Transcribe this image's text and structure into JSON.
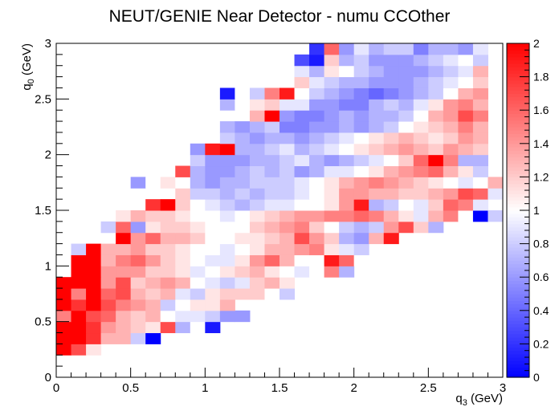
{
  "chart_data": {
    "type": "heatmap",
    "title": "NEUT/GENIE Near Detector - numu CCOther",
    "xlabel": "q_3 (GeV)",
    "ylabel": "q_0 (GeV)",
    "xlim": [
      0,
      3
    ],
    "ylim": [
      0,
      3
    ],
    "zlim": [
      0,
      2
    ],
    "x_bins": 30,
    "y_bins": 30,
    "x_ticks": [
      "0",
      "0.5",
      "1",
      "1.5",
      "2",
      "2.5",
      "3"
    ],
    "y_ticks": [
      "0",
      "0.5",
      "1",
      "1.5",
      "2",
      "2.5",
      "3"
    ],
    "z_ticks": [
      "0",
      "0.2",
      "0.4",
      "0.6",
      "0.8",
      "1",
      "1.2",
      "1.4",
      "1.6",
      "1.8",
      "2"
    ],
    "colormap": [
      "#0000ff",
      "#ffffff",
      "#ff0000"
    ],
    "rows_comment_free": true,
    "rows": [
      {
        "y0": 0.2,
        "x0": 0.0,
        "v": [
          2.0,
          1.7,
          1.1
        ]
      },
      {
        "y0": 0.3,
        "x0": 0.0,
        "v": [
          2.0,
          2.0,
          1.8,
          1.3,
          1.3,
          0.8,
          0.0
        ]
      },
      {
        "y0": 0.4,
        "x0": 0.0,
        "v": [
          2.0,
          2.0,
          1.8,
          1.4,
          1.3,
          1.2,
          1.1,
          1.7,
          0.7,
          1.0,
          0.1
        ]
      },
      {
        "y0": 0.5,
        "x0": 0.0,
        "v": [
          1.5,
          2.0,
          1.7,
          1.6,
          1.3,
          1.2,
          1.3,
          1.0,
          0.9,
          0.9,
          0.8,
          0.6,
          0.6
        ]
      },
      {
        "y0": 0.6,
        "x0": 0.0,
        "v": [
          2.0,
          1.8,
          2.0,
          1.7,
          1.5,
          1.4,
          1.3,
          0.8,
          1.0,
          1.1,
          1.1,
          1.3
        ]
      },
      {
        "y0": 0.7,
        "x0": 0.0,
        "v": [
          2.0,
          1.5,
          2.0,
          1.6,
          1.7,
          1.3,
          1.2,
          1.3,
          0.9,
          0.8,
          1.1,
          1.2,
          1.2,
          1.2,
          1.0,
          0.8
        ]
      },
      {
        "y0": 0.8,
        "x0": 0.0,
        "v": [
          2.0,
          2.0,
          2.0,
          1.4,
          1.7,
          1.2,
          1.3,
          1.4,
          1.3,
          1.0,
          0.9,
          0.8,
          0.9,
          1.2,
          1.3,
          1.1
        ]
      },
      {
        "y0": 0.9,
        "x0": 0.1,
        "v": [
          2.0,
          2.0,
          1.4,
          1.4,
          1.4,
          1.2,
          1.2,
          1.1,
          0.9,
          1.0,
          1.1,
          1.2,
          1.3,
          1.1,
          1.0,
          0.9,
          1.0,
          1.5,
          0.7
        ]
      },
      {
        "y0": 1.0,
        "x0": 0.1,
        "v": [
          2.0,
          2.0,
          1.3,
          1.5,
          1.6,
          1.4,
          1.2,
          1.1,
          1.0,
          0.9,
          0.9,
          1.1,
          1.4,
          1.6,
          1.3,
          1.0,
          1.0,
          1.9,
          1.6,
          1.0
        ]
      },
      {
        "y0": 1.1,
        "x0": 0.1,
        "v": [
          0.8,
          2.0,
          1.3,
          1.3,
          1.4,
          1.2,
          1.2,
          1.1,
          1.0,
          1.0,
          0.9,
          1.0,
          1.1,
          1.3,
          1.3,
          1.4,
          1.5,
          1.1,
          0.9,
          0.8
        ]
      },
      {
        "y0": 1.2,
        "x0": 0.4,
        "v": [
          2.0,
          1.4,
          1.6,
          1.3,
          1.3,
          1.2,
          1.0,
          1.0,
          1.1,
          1.1,
          1.2,
          1.3,
          1.7,
          1.4,
          1.2,
          0.7,
          0.6,
          1.3,
          1.9
        ]
      },
      {
        "y0": 1.3,
        "x0": 0.3,
        "v": [
          0.8,
          1.6,
          0.6,
          1.1,
          1.2,
          1.2,
          1.1,
          1.0,
          1.0,
          1.0,
          1.2,
          1.3,
          1.4,
          1.5,
          1.2,
          1.0,
          0.8,
          0.7,
          0.8,
          1.4,
          1.7,
          1.2,
          0.7
        ]
      },
      {
        "y0": 1.4,
        "x0": 0.4,
        "v": [
          1.1,
          1.3,
          1.2,
          1.2,
          1.1,
          1.0,
          1.0,
          0.9,
          1.0,
          1.1,
          1.2,
          1.3,
          1.4,
          1.4,
          1.5,
          1.5,
          1.6,
          1.5,
          1.3,
          1.1,
          0.9,
          1.3,
          1.5,
          1.0,
          0.0,
          0.8
        ]
      },
      {
        "y0": 1.5,
        "x0": 0.6,
        "v": [
          1.8,
          2.0,
          1.2,
          1.0,
          0.9,
          0.8,
          0.7,
          0.8,
          0.9,
          0.9,
          1.0,
          1.0,
          1.1,
          1.4,
          1.9,
          0.7,
          0.8,
          1.0,
          0.9,
          1.2,
          1.6,
          1.5,
          0.9
        ]
      },
      {
        "y0": 1.6,
        "x0": 0.8,
        "v": [
          1.2,
          0.8,
          0.8,
          0.7,
          0.8,
          0.7,
          0.8,
          0.8,
          0.9,
          1.0,
          1.1,
          1.4,
          1.4,
          1.3,
          1.3,
          1.2,
          1.2,
          1.3,
          1.4,
          1.7,
          1.6,
          0.9
        ]
      },
      {
        "y0": 1.7,
        "x0": 0.5,
        "v": [
          0.6,
          1.0,
          1.1,
          1.0,
          0.7,
          0.6,
          0.7,
          0.7,
          0.8,
          0.8,
          0.8,
          0.9,
          1.0,
          1.1,
          1.3,
          1.4,
          1.5,
          1.4,
          1.3,
          1.2,
          1.1,
          1.0,
          0.9,
          1.0,
          1.3
        ]
      },
      {
        "y0": 1.8,
        "x0": 0.8,
        "v": [
          1.7,
          0.7,
          0.6,
          0.6,
          0.7,
          0.8,
          0.7,
          0.8,
          0.6,
          0.7,
          0.9,
          0.9,
          1.0,
          1.1,
          1.3,
          1.4,
          1.5,
          1.6,
          1.3,
          1.1,
          0.8
        ]
      },
      {
        "y0": 1.9,
        "x0": 0.9,
        "v": [
          0.8,
          0.6,
          0.6,
          0.6,
          0.7,
          0.7,
          0.8,
          0.9,
          0.7,
          0.6,
          0.7,
          0.8,
          0.9,
          1.0,
          1.2,
          1.6,
          2.0,
          1.5,
          0.7,
          0.7
        ]
      },
      {
        "y0": 2.0,
        "x0": 0.9,
        "v": [
          0.6,
          1.9,
          2.0,
          0.7,
          0.7,
          0.8,
          0.9,
          0.7,
          0.8,
          0.9,
          1.0,
          1.1,
          1.2,
          1.3,
          1.4,
          1.3,
          1.2,
          1.4,
          1.3,
          1.2
        ]
      },
      {
        "y0": 2.1,
        "x0": 1.1,
        "v": [
          0.8,
          0.7,
          0.6,
          0.7,
          0.7,
          0.6,
          0.7,
          0.8,
          0.9,
          1.0,
          1.1,
          1.2,
          1.3,
          1.2,
          1.1,
          1.2,
          1.4,
          1.3
        ]
      },
      {
        "y0": 2.2,
        "x0": 1.1,
        "v": [
          0.7,
          0.6,
          0.7,
          0.8,
          0.5,
          0.5,
          0.6,
          0.6,
          0.7,
          0.6,
          0.7,
          0.8,
          1.0,
          1.1,
          1.2,
          1.3,
          1.5,
          1.3
        ]
      },
      {
        "y0": 2.3,
        "x0": 1.3,
        "v": [
          1.3,
          2.0,
          0.6,
          0.5,
          0.5,
          0.6,
          0.7,
          0.6,
          0.7,
          0.7,
          0.8,
          1.0,
          1.3,
          1.4,
          1.7,
          1.5
        ]
      },
      {
        "y0": 2.4,
        "x0": 1.1,
        "v": [
          0.7,
          1.0,
          1.1,
          1.2,
          0.9,
          0.9,
          0.6,
          0.6,
          0.5,
          0.5,
          0.7,
          0.8,
          0.7,
          0.9,
          1.1,
          1.4,
          1.5,
          1.3
        ]
      },
      {
        "y0": 2.5,
        "x0": 1.1,
        "v": [
          0.1,
          1.0,
          0.8,
          1.5,
          1.9,
          1.0,
          0.8,
          0.7,
          0.6,
          0.5,
          0.4,
          0.5,
          0.6,
          0.7,
          0.8,
          1.0,
          1.3,
          1.4
        ]
      },
      {
        "y0": 2.6,
        "x0": 1.6,
        "v": [
          1.2,
          0.9,
          0.8,
          0.7,
          0.7,
          0.6,
          0.6,
          0.6,
          0.7,
          0.8,
          0.9,
          1.0,
          1.2
        ]
      },
      {
        "y0": 2.7,
        "x0": 1.6,
        "v": [
          0.9,
          0.7,
          1.1,
          1.0,
          0.8,
          0.7,
          0.6,
          0.6,
          0.6,
          0.7,
          0.8,
          0.9,
          1.3
        ]
      },
      {
        "y0": 2.8,
        "x0": 1.6,
        "v": [
          0.3,
          0.1,
          1.2,
          0.7,
          0.8,
          0.6,
          0.6,
          0.6,
          0.7,
          0.8,
          0.9,
          1.0,
          0.8
        ]
      },
      {
        "y0": 2.9,
        "x0": 1.7,
        "v": [
          0.2,
          1.6,
          0.6,
          0.9,
          0.7,
          0.8,
          0.8,
          0.5,
          0.7,
          0.7,
          0.6,
          0.9
        ]
      }
    ]
  }
}
